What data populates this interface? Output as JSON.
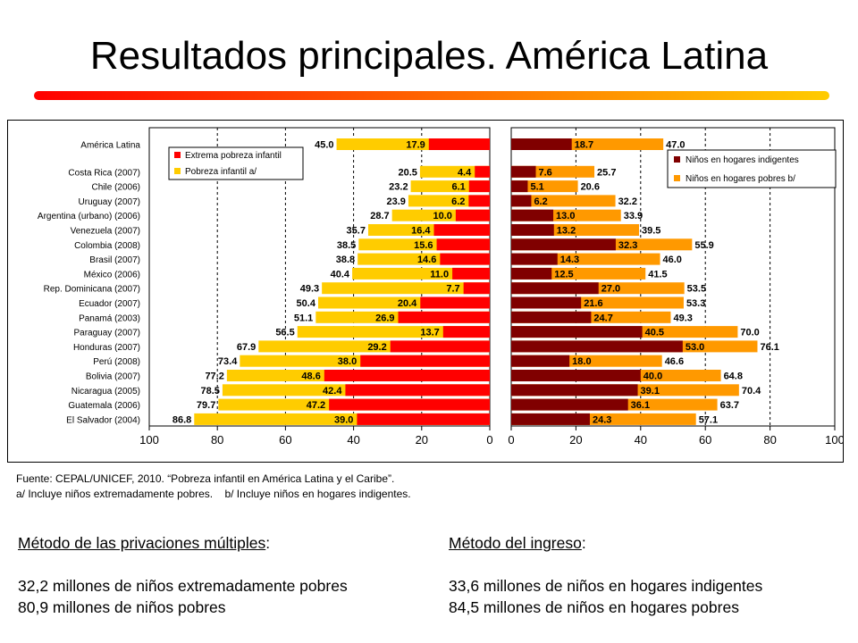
{
  "page": {
    "title": "Resultados principales. América Latina",
    "source_line": "Fuente: CEPAL/UNICEF, 2010. “Pobreza infantil en América Latina y el Caribe”.",
    "notes_a": "a/ Incluye niños extremadamente pobres.",
    "notes_b": "b/ Incluye niños en hogares indigentes.",
    "left_method": {
      "heading": "Método de las privaciones múltiples",
      "line1": "32,2 millones de niños extremadamente pobres",
      "line2": "80,9 millones de niños pobres"
    },
    "right_method": {
      "heading": "Método del ingreso",
      "line1": "33,6 millones de niños en hogares indigentes",
      "line2": "84,5 millones de niños en hogares pobres"
    }
  },
  "colors": {
    "red": "#ff0000",
    "yellow": "#ffcc00",
    "dark_red": "#800000",
    "orange": "#ff9900",
    "title_rule_start": "#ff0000",
    "title_rule_end": "#ffcc00"
  },
  "chart_data": [
    {
      "type": "bar",
      "orientation": "horizontal",
      "x_direction": "reversed",
      "categories": [
        "América Latina",
        "Costa Rica (2007)",
        "Chile (2006)",
        "Uruguay (2007)",
        "Argentina (urbano) (2006)",
        "Venezuela (2007)",
        "Colombia (2008)",
        "Brasil (2007)",
        "México (2006)",
        "Rep. Dominicana (2007)",
        "Ecuador (2007)",
        "Panamá (2003)",
        "Paraguay (2007)",
        "Honduras (2007)",
        "Perú (2008)",
        "Bolivia (2007)",
        "Nicaragua (2005)",
        "Guatemala (2006)",
        "El Salvador (2004)"
      ],
      "series": [
        {
          "name": "Extrema pobreza infantil",
          "color": "#ff0000",
          "values": [
            17.9,
            4.4,
            6.1,
            6.2,
            10.0,
            16.4,
            15.6,
            14.6,
            11.0,
            7.7,
            20.4,
            26.9,
            13.7,
            29.2,
            38.0,
            48.6,
            42.4,
            47.2,
            39.0
          ]
        },
        {
          "name": "Pobreza infantil a/",
          "color": "#ffcc00",
          "values": [
            45.0,
            20.5,
            23.2,
            23.9,
            28.7,
            35.7,
            38.5,
            38.8,
            40.4,
            49.3,
            50.4,
            51.1,
            56.5,
            67.9,
            73.4,
            77.2,
            78.5,
            79.7,
            86.8
          ]
        }
      ],
      "xlim": [
        0,
        100
      ],
      "xticks": [
        "100",
        "80",
        "60",
        "40",
        "20",
        "0"
      ],
      "legend": "top-left, inside"
    },
    {
      "type": "bar",
      "orientation": "horizontal",
      "categories": [
        "América Latina",
        "Costa Rica (2007)",
        "Chile (2006)",
        "Uruguay (2007)",
        "Argentina (urbano) (2006)",
        "Venezuela (2007)",
        "Colombia (2008)",
        "Brasil (2007)",
        "México (2006)",
        "Rep. Dominicana (2007)",
        "Ecuador (2007)",
        "Panamá (2003)",
        "Paraguay (2007)",
        "Honduras (2007)",
        "Perú (2008)",
        "Bolivia (2007)",
        "Nicaragua (2005)",
        "Guatemala (2006)",
        "El Salvador (2004)"
      ],
      "series": [
        {
          "name": "Niños en hogares indigentes",
          "color": "#800000",
          "values": [
            18.7,
            7.6,
            5.1,
            6.2,
            13.0,
            13.2,
            32.3,
            14.3,
            12.5,
            27.0,
            21.6,
            24.7,
            40.5,
            53.0,
            18.0,
            40.0,
            39.1,
            36.1,
            24.3
          ]
        },
        {
          "name": "Niños en hogares pobres b/",
          "color": "#ff9900",
          "values": [
            47.0,
            25.7,
            20.6,
            32.2,
            33.9,
            39.5,
            55.9,
            46.0,
            41.5,
            53.5,
            53.3,
            49.3,
            70.0,
            76.1,
            46.6,
            64.8,
            70.4,
            63.7,
            57.1
          ]
        }
      ],
      "xlim": [
        0,
        100
      ],
      "xticks": [
        "0",
        "20",
        "40",
        "60",
        "80",
        "100"
      ],
      "legend": "top-right, inside"
    }
  ]
}
